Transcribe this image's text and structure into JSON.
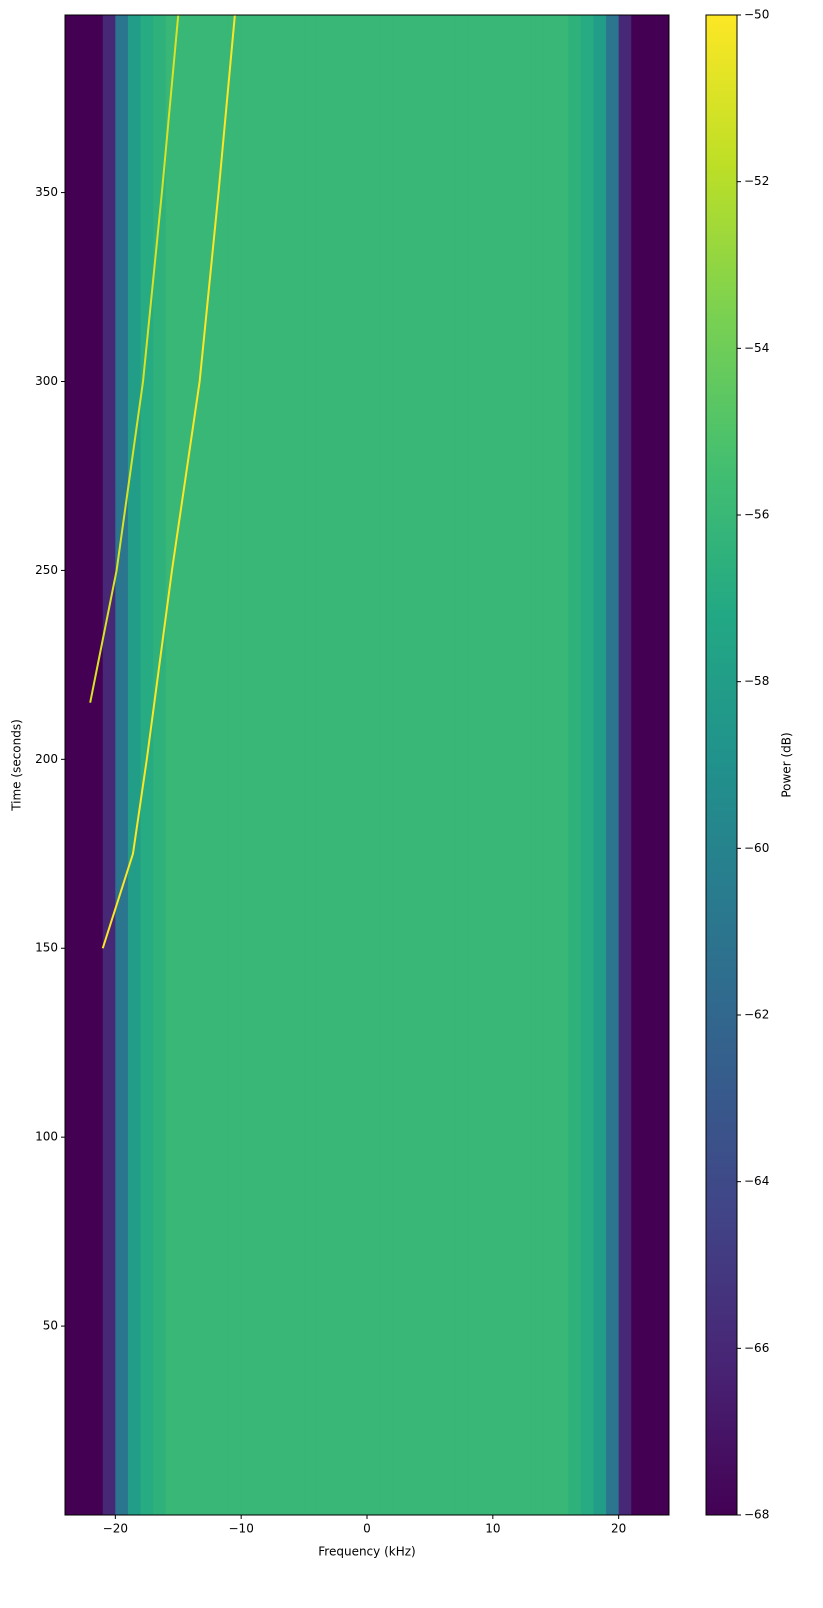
{
  "chart_data": {
    "type": "spectrogram",
    "xlabel": "Frequency (kHz)",
    "ylabel": "Time (seconds)",
    "colorbar_label": "Power (dB)",
    "x": [
      -23.5,
      -22.5,
      -21.5,
      -20.5,
      -19.5,
      -18.5,
      -17.5,
      -16.5,
      -15.5,
      -14.5,
      -13.5,
      -12.5,
      -11.5,
      -10.5,
      -9.5,
      -8.5,
      -7.5,
      -6.5,
      -5.5,
      -4.5,
      -3.5,
      -2.5,
      -1.5,
      -0.5,
      0.5,
      1.5,
      2.5,
      3.5,
      4.5,
      5.5,
      6.5,
      7.5,
      8.5,
      9.5,
      10.5,
      11.5,
      12.5,
      13.5,
      14.5,
      15.5,
      16.5,
      17.5,
      18.5,
      19.5,
      20.5,
      21.5,
      22.5,
      23.5
    ],
    "values": [
      -68,
      -68,
      -68,
      -66,
      -61,
      -58,
      -57,
      -56.5,
      -56,
      -56,
      -56,
      -56,
      -56,
      -56,
      -56,
      -56,
      -56,
      -56,
      -56,
      -56,
      -56,
      -56,
      -56,
      -56,
      -56,
      -56,
      -56,
      -56,
      -56,
      -56,
      -56,
      -56,
      -56,
      -56,
      -56,
      -56,
      -56,
      -56,
      -56,
      -56,
      -56.5,
      -57,
      -58,
      -61,
      -66,
      -68,
      -68,
      -68
    ],
    "traces": [
      {
        "x": [
          -21,
          -18.6,
          -17.5,
          -15.5,
          -13.3,
          -11.8,
          -10.5
        ],
        "y": [
          150,
          175,
          200,
          250,
          300,
          350,
          397
        ],
        "value": -50
      },
      {
        "x": [
          -22,
          -19.9,
          -17.8,
          -16.3,
          -15
        ],
        "y": [
          215,
          250,
          300,
          350,
          397
        ],
        "value": -51
      }
    ],
    "xlim": [
      -24,
      24
    ],
    "ylim": [
      0,
      397
    ],
    "xticks": [
      {
        "value": -20,
        "label": "−20"
      },
      {
        "value": -10,
        "label": "−10"
      },
      0,
      10,
      20
    ],
    "yticks": [
      50,
      100,
      150,
      200,
      250,
      300,
      350
    ],
    "clim": [
      -68,
      -50
    ],
    "cticks": [
      {
        "value": -68,
        "label": "−68"
      },
      {
        "value": -66,
        "label": "−66"
      },
      {
        "value": -64,
        "label": "−64"
      },
      {
        "value": -62,
        "label": "−62"
      },
      {
        "value": -60,
        "label": "−60"
      },
      {
        "value": -58,
        "label": "−58"
      },
      {
        "value": -56,
        "label": "−56"
      },
      {
        "value": -54,
        "label": "−54"
      },
      {
        "value": -52,
        "label": "−52"
      },
      {
        "value": -50,
        "label": "−50"
      }
    ],
    "colormap": "viridis"
  }
}
